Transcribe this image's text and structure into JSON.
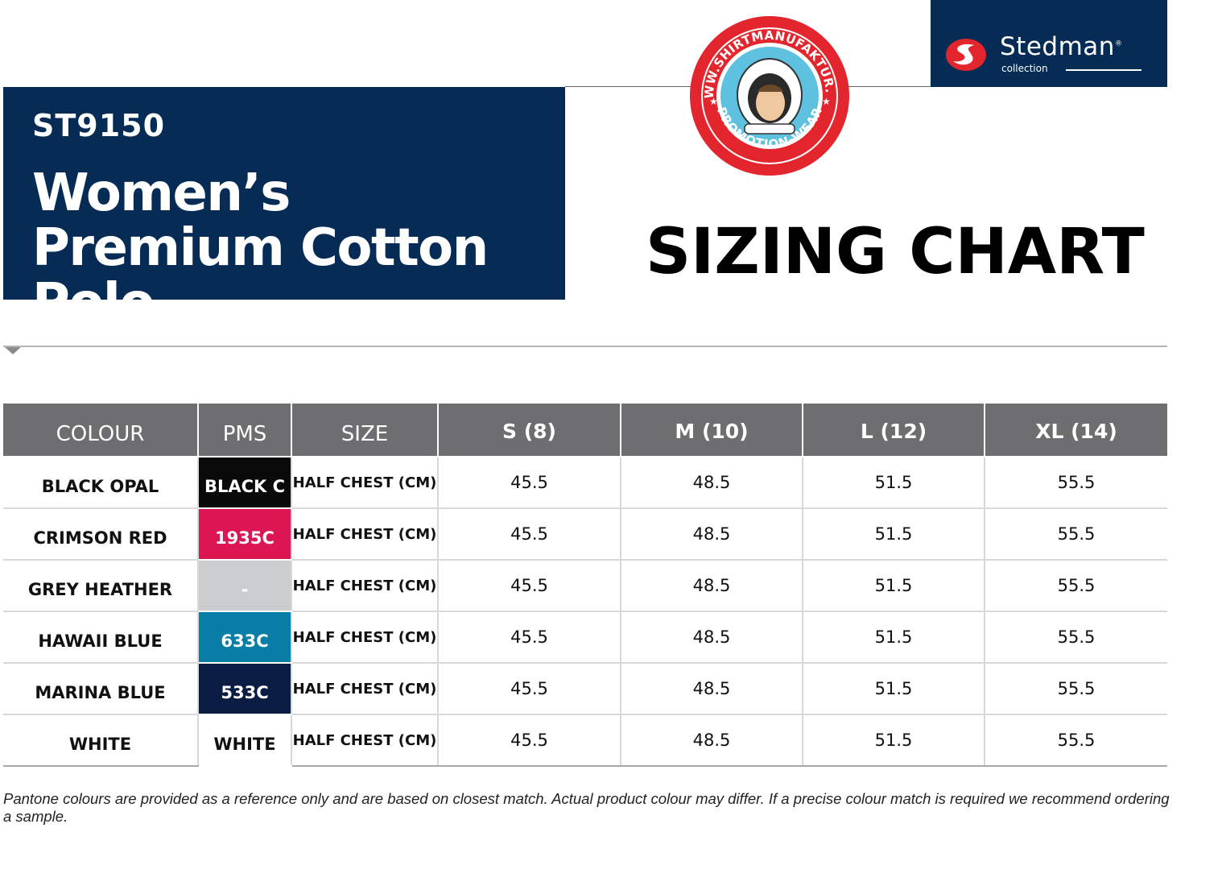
{
  "header": {
    "style_code": "ST9150",
    "product_name": "Women’s Premium Cotton Polo",
    "chart_title": "SIZING CHART"
  },
  "brand": {
    "name": "Stedman",
    "registered_mark": "®",
    "subline": "collection",
    "colors": {
      "panel": "#062c56",
      "mark": "#e3262d"
    }
  },
  "badge": {
    "top_text": "WWW.SHIRTMANUFAKTUR.DE",
    "bottom_text": "PROMOTION-WEAR",
    "icon": "astronaut-icon",
    "colors": {
      "ring": "#e3262d",
      "center": "#5fc1e0"
    }
  },
  "table": {
    "headers": [
      "COLOUR",
      "PMS",
      "SIZE",
      "S (8)",
      "M (10)",
      "L (12)",
      "XL (14)"
    ],
    "rows": [
      {
        "colour": "BLACK OPAL",
        "pms": "BLACK C",
        "pms_bg": "#0a0a0a",
        "pms_fg": "#ffffff",
        "size": "HALF CHEST (CM)",
        "values": [
          "45.5",
          "48.5",
          "51.5",
          "55.5"
        ]
      },
      {
        "colour": "CRIMSON RED",
        "pms": "1935C",
        "pms_bg": "#dc1553",
        "pms_fg": "#ffffff",
        "size": "HALF CHEST (CM)",
        "values": [
          "45.5",
          "48.5",
          "51.5",
          "55.5"
        ]
      },
      {
        "colour": "GREY HEATHER",
        "pms": "-",
        "pms_bg": "#cbcccd",
        "pms_fg": "#ffffff",
        "size": "HALF CHEST (CM)",
        "values": [
          "45.5",
          "48.5",
          "51.5",
          "55.5"
        ]
      },
      {
        "colour": "HAWAII BLUE",
        "pms": "633C",
        "pms_bg": "#087ea6",
        "pms_fg": "#ffffff",
        "size": "HALF CHEST (CM)",
        "values": [
          "45.5",
          "48.5",
          "51.5",
          "55.5"
        ]
      },
      {
        "colour": "MARINA BLUE",
        "pms": "533C",
        "pms_bg": "#0b1c42",
        "pms_fg": "#ffffff",
        "size": "HALF CHEST (CM)",
        "values": [
          "45.5",
          "48.5",
          "51.5",
          "55.5"
        ]
      },
      {
        "colour": "WHITE",
        "pms": "WHITE",
        "pms_bg": "#ffffff",
        "pms_fg": "#111111",
        "size": "HALF CHEST (CM)",
        "values": [
          "45.5",
          "48.5",
          "51.5",
          "55.5"
        ]
      }
    ]
  },
  "footnote": "Pantone colours are provided as a reference only and are based on closest match. Actual product colour may differ. If a precise colour match is required we recommend ordering a sample."
}
